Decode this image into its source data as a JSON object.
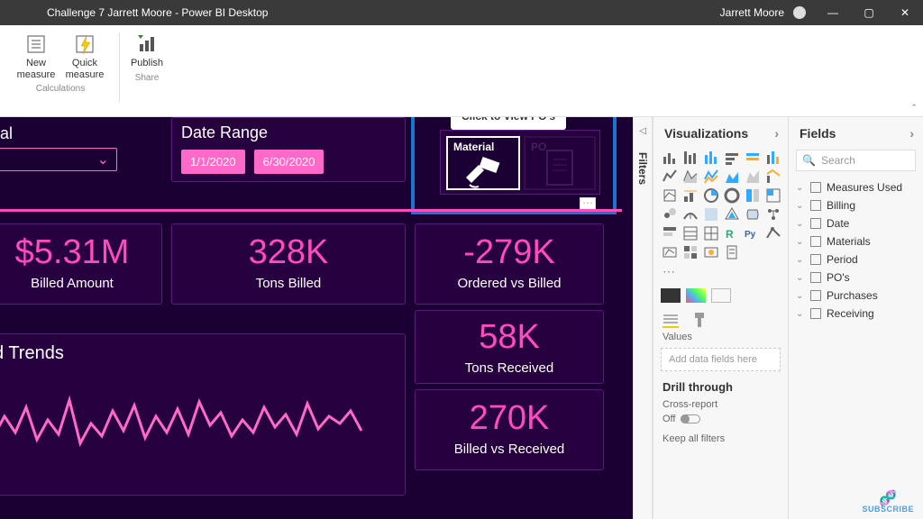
{
  "window": {
    "title": "Challenge 7 Jarrett Moore - Power BI Desktop",
    "user": "Jarrett Moore"
  },
  "ribbon": {
    "groups": [
      {
        "label": "Calculations",
        "buttons": [
          "New measure",
          "Quick measure"
        ]
      },
      {
        "label": "Share",
        "buttons": [
          "Publish"
        ]
      }
    ],
    "new_measure": "New\nmeasure",
    "quick_measure": "Quick\nmeasure",
    "publish": "Publish",
    "g_calc": "Calculations",
    "g_share": "Share"
  },
  "report": {
    "background": "#1a0033",
    "card_bg": "#26003f",
    "accent": "#ff4ac0",
    "highlight_border": "#1976d2",
    "material_header": "ial",
    "date_range_header": "Date Range",
    "date_start": "1/1/2020",
    "date_end": "6/30/2020",
    "tooltip": "Click to View PO's",
    "thumb1_label": "Material",
    "thumb2_label": "PO",
    "cards": {
      "billed_amount": {
        "value": "$5.31M",
        "label": "Billed Amount"
      },
      "tons_billed": {
        "value": "328K",
        "label": "Tons Billed"
      },
      "ordered_vs_billed": {
        "value": "-279K",
        "label": "Ordered vs Billed"
      },
      "tons_received": {
        "value": "58K",
        "label": "Tons Received"
      },
      "billed_vs_received": {
        "value": "270K",
        "label": "Billed vs Received"
      }
    },
    "trends_header": "d Trends",
    "spark": {
      "color": "#ff6ac8",
      "points": [
        0,
        62,
        12,
        40,
        24,
        58,
        36,
        30,
        48,
        66,
        60,
        44,
        72,
        60,
        84,
        22,
        96,
        70,
        108,
        48,
        120,
        62,
        132,
        34,
        144,
        56,
        156,
        28,
        168,
        64,
        180,
        40,
        192,
        58,
        204,
        32,
        216,
        60,
        228,
        24,
        240,
        50,
        252,
        36,
        264,
        62,
        276,
        44,
        288,
        58,
        300,
        30,
        312,
        52,
        324,
        38,
        336,
        60,
        348,
        26,
        360,
        54,
        372,
        40,
        384,
        48,
        396,
        34,
        408,
        56
      ]
    }
  },
  "filters_label": "Filters",
  "viz": {
    "header": "Visualizations",
    "values_label": "Values",
    "dropzone": "Add data fields here",
    "drill_header": "Drill through",
    "cross_report": "Cross-report",
    "off": "Off",
    "keep_all": "Keep all filters"
  },
  "fields": {
    "header": "Fields",
    "search_placeholder": "Search",
    "tables": [
      "Measures Used",
      "Billing",
      "Date",
      "Materials",
      "Period",
      "PO's",
      "Purchases",
      "Receiving"
    ]
  },
  "subscribe": "SUBSCRIBE"
}
